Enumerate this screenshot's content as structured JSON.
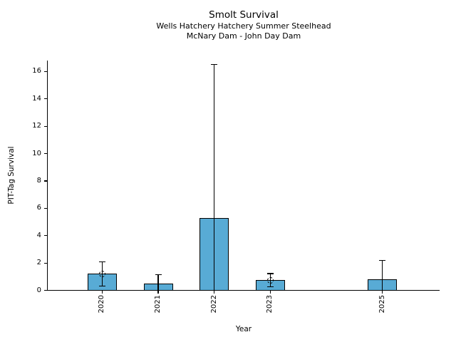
{
  "chart_data": {
    "type": "bar",
    "title": "Smolt Survival",
    "subtitle1": "Wells Hatchery Hatchery Summer Steelhead",
    "subtitle2": "McNary Dam - John Day Dam",
    "xlabel": "Year",
    "ylabel": "PIT-Tag Survival",
    "categories": [
      "2020",
      "2021",
      "2022",
      "2023",
      "2025"
    ],
    "x": [
      2020,
      2021,
      2022,
      2023,
      2025
    ],
    "values": [
      1.2,
      0.5,
      5.3,
      0.75,
      0.82
    ],
    "error_low": [
      0.3,
      0.0,
      0.0,
      0.27,
      0.0
    ],
    "error_high": [
      2.1,
      1.15,
      16.5,
      1.22,
      2.2
    ],
    "point_markers": [
      true,
      false,
      false,
      true,
      false
    ],
    "yticks": [
      0,
      2,
      4,
      6,
      8,
      10,
      12,
      14,
      16
    ],
    "xlim": [
      2019.03,
      2026.02
    ],
    "ylim": [
      0,
      16.8
    ],
    "grid": false,
    "legend_position": "none",
    "bar_color": "#58abd5",
    "bar_edge_color": "#000000",
    "error_color": "#000000",
    "axis_color": "#000000",
    "background_color": "#ffffff"
  }
}
